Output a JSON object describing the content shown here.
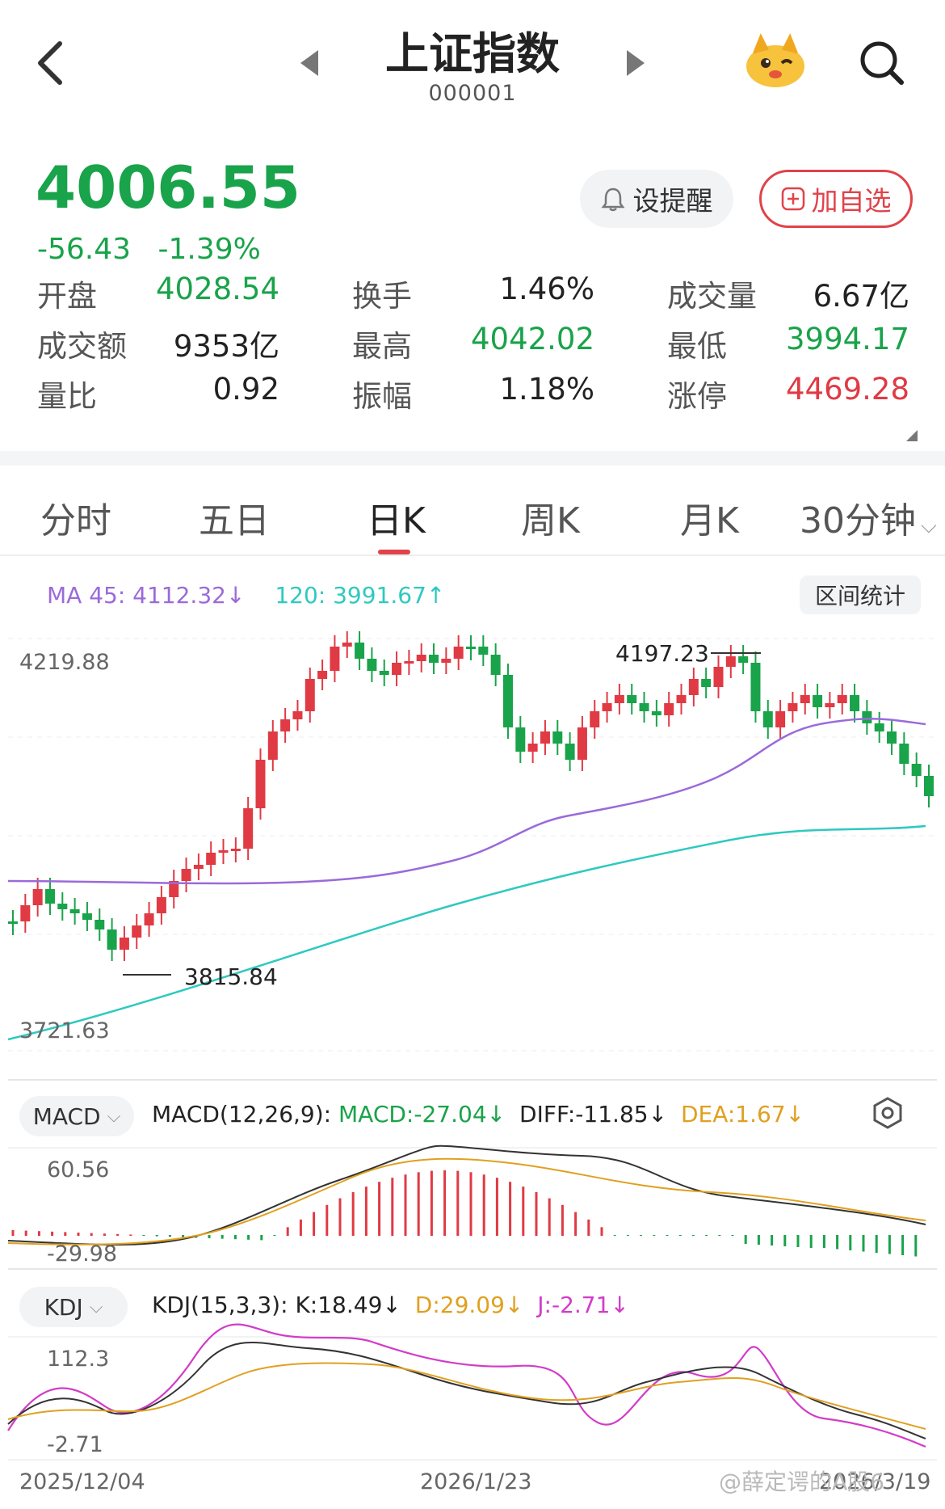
{
  "header": {
    "title": "上证指数",
    "code": "000001"
  },
  "quote": {
    "price": "4006.55",
    "change": "-56.43",
    "change_pct": "-1.39%",
    "alert_label": "设提醒",
    "add_label": "加自选"
  },
  "stats": [
    [
      {
        "label": "开盘",
        "value": "4028.54",
        "color": "green"
      },
      {
        "label": "换手",
        "value": "1.46%",
        "color": "dark"
      },
      {
        "label": "成交量",
        "value": "6.67亿",
        "color": "dark"
      }
    ],
    [
      {
        "label": "成交额",
        "value": "9353亿",
        "color": "dark"
      },
      {
        "label": "最高",
        "value": "4042.02",
        "color": "green"
      },
      {
        "label": "最低",
        "value": "3994.17",
        "color": "green"
      }
    ],
    [
      {
        "label": "量比",
        "value": "0.92",
        "color": "dark"
      },
      {
        "label": "振幅",
        "value": "1.18%",
        "color": "dark"
      },
      {
        "label": "涨停",
        "value": "4469.28",
        "color": "red"
      }
    ]
  ],
  "tabs": [
    "分时",
    "五日",
    "日K",
    "周K",
    "月K",
    "30分钟"
  ],
  "active_tab": "日K",
  "ma": {
    "ma45_label": "MA 45: 4112.32",
    "ma120_label": "120: 3991.67",
    "range_btn": "区间统计"
  },
  "kline": {
    "y_top_label": "4219.88",
    "y_bottom_label": "3721.63",
    "high_label": "4197.23",
    "low_label": "3815.84"
  },
  "macd": {
    "selector": "MACD",
    "params": "MACD(12,26,9):",
    "macd": "MACD:-27.04",
    "diff": "DIFF:-11.85",
    "dea": "DEA:1.67",
    "y_top": "60.56",
    "y_bottom": "-29.98"
  },
  "kdj": {
    "selector": "KDJ",
    "params": "KDJ(15,3,3):",
    "k": "K:18.49",
    "d": "D:29.09",
    "j": "J:-2.71",
    "y_top": "112.3",
    "y_bottom": "-2.71"
  },
  "dates": [
    "2025/12/04",
    "2026/1/23",
    "2026/3/19"
  ],
  "watermark": "@薛定谔的A股6",
  "colors": {
    "up": "#e03a44",
    "down": "#19a34a",
    "ma45": "#9b6ad9",
    "ma120": "#2ec9c0",
    "dea": "#e0a020",
    "kdj_j": "#d23cc8"
  }
}
